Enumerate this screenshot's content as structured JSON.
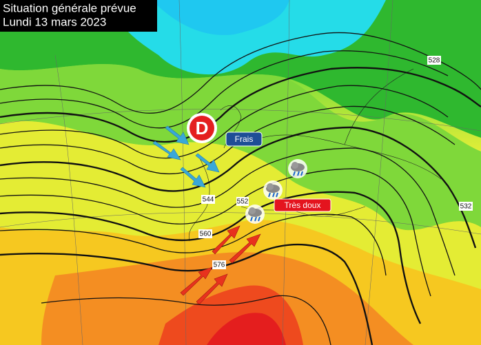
{
  "header": {
    "title": "Situation générale prévue",
    "date": "Lundi 13 mars 2023"
  },
  "low": {
    "label": "D"
  },
  "annotations": [
    {
      "label": "Frais"
    },
    {
      "label": "Très doux"
    }
  ],
  "contour_labels": [
    "528",
    "532",
    "544",
    "552",
    "560",
    "576"
  ]
}
